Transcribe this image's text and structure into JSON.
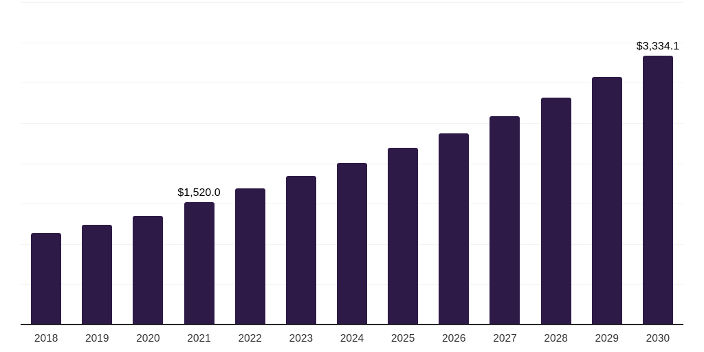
{
  "chart_data": {
    "type": "bar",
    "title": "",
    "xlabel": "",
    "ylabel": "",
    "categories": [
      "2018",
      "2019",
      "2020",
      "2021",
      "2022",
      "2023",
      "2024",
      "2025",
      "2026",
      "2027",
      "2028",
      "2029",
      "2030"
    ],
    "values": [
      1135,
      1240,
      1350,
      1520.0,
      1685,
      1840,
      2005,
      2190,
      2370,
      2585,
      2815,
      3070,
      3334.1
    ],
    "data_labels": {
      "2021": "$1,520.0",
      "2030": "$3,334.1"
    },
    "ylim": [
      0,
      4000
    ],
    "gridline_step": 500,
    "grid": true,
    "legend": false,
    "bar_color": "#2e1a47",
    "gridline_color": "#f2f2f2",
    "axis_line_color": "#262626",
    "tick_label_color": "#333333",
    "data_label_color": "#000000"
  }
}
